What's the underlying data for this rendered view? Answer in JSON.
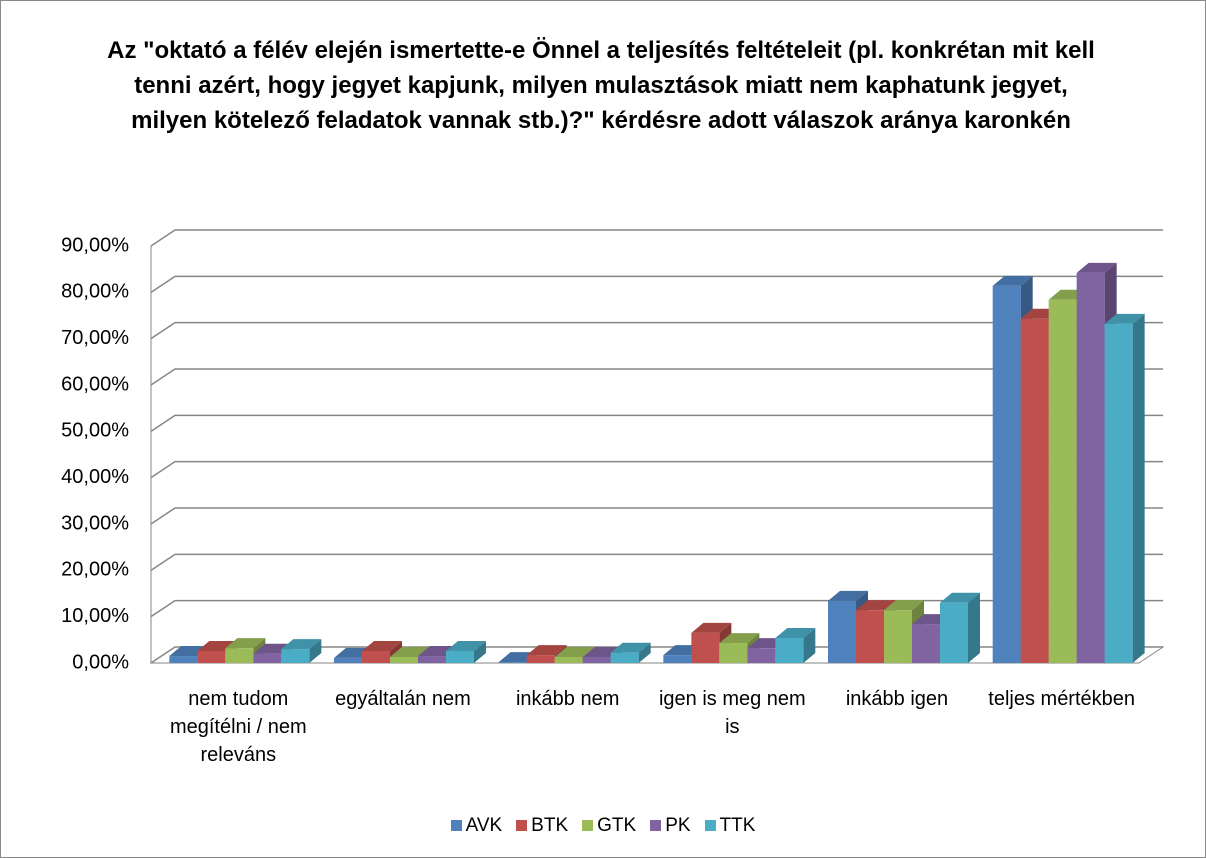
{
  "chart_data": {
    "type": "bar3d",
    "title": "Az \"oktató a félév elején ismertette-e Önnel a teljesítés feltételeit (pl. konkrétan mit kell tenni azért, hogy jegyet kapjunk, milyen mulasztások miatt nem kaphatunk jegyet, milyen kötelező feladatok vannak stb.)?\" kérdésre adott válaszok aránya karonkén",
    "categories": [
      "nem tudom megítélni / nem releváns",
      "egyáltalán nem",
      "inkább nem",
      "igen is meg nem is",
      "inkább igen",
      "teljes mértékben"
    ],
    "series": [
      {
        "name": "AVK",
        "color": "#4f81bd",
        "values": [
          1.5,
          1.1,
          0.2,
          1.7,
          13.4,
          81.4
        ]
      },
      {
        "name": "BTK",
        "color": "#c0504d",
        "values": [
          2.6,
          2.6,
          1.7,
          6.5,
          11.4,
          74.3
        ]
      },
      {
        "name": "GTK",
        "color": "#9bbb59",
        "values": [
          3.2,
          1.3,
          1.3,
          4.3,
          11.4,
          78.4
        ]
      },
      {
        "name": "PK",
        "color": "#8064a2",
        "values": [
          2.0,
          1.5,
          1.3,
          3.2,
          8.4,
          84.2
        ]
      },
      {
        "name": "TTK",
        "color": "#4bacc6",
        "values": [
          3.0,
          2.6,
          2.2,
          5.4,
          13.0,
          73.2
        ]
      }
    ],
    "ylim": [
      0,
      90
    ],
    "yticks": [
      {
        "value": 0,
        "label": "0,00%"
      },
      {
        "value": 10,
        "label": "10,00%"
      },
      {
        "value": 20,
        "label": "20,00%"
      },
      {
        "value": 30,
        "label": "30,00%"
      },
      {
        "value": 40,
        "label": "40,00%"
      },
      {
        "value": 50,
        "label": "50,00%"
      },
      {
        "value": 60,
        "label": "60,00%"
      },
      {
        "value": 70,
        "label": "70,00%"
      },
      {
        "value": 80,
        "label": "80,00%"
      },
      {
        "value": 90,
        "label": "90,00%"
      }
    ],
    "grid": true,
    "legend": "bottom"
  }
}
